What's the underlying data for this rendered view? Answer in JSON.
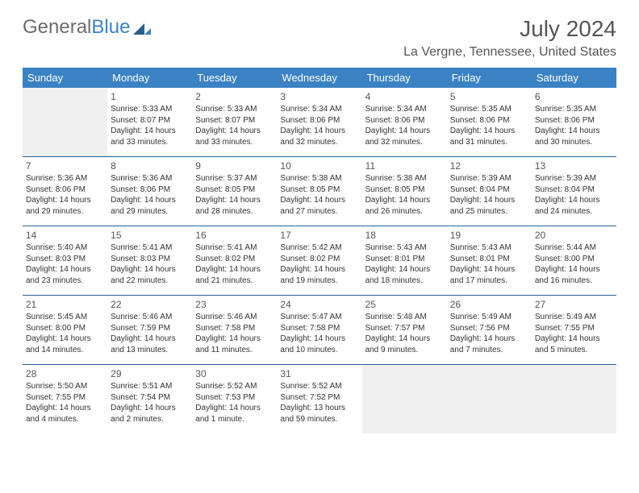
{
  "brand": {
    "word1": "General",
    "word2": "Blue"
  },
  "title": "July 2024",
  "location": "La Vergne, Tennessee, United States",
  "colors": {
    "header_bg": "#3b82c4",
    "header_text": "#ffffff",
    "cell_border": "#2c5f8d",
    "body_text": "#333333",
    "muted_text": "#555555",
    "empty_bg": "#f0f0f0",
    "page_bg": "#ffffff"
  },
  "typography": {
    "title_fontsize": 28,
    "location_fontsize": 16,
    "dayheader_fontsize": 13,
    "daynum_fontsize": 12,
    "cell_fontsize": 10
  },
  "dayHeaders": [
    "Sunday",
    "Monday",
    "Tuesday",
    "Wednesday",
    "Thursday",
    "Friday",
    "Saturday"
  ],
  "weeks": [
    [
      {
        "n": "",
        "sr": "",
        "ss": "",
        "dl": "",
        "empty": true
      },
      {
        "n": "1",
        "sr": "Sunrise: 5:33 AM",
        "ss": "Sunset: 8:07 PM",
        "dl": "Daylight: 14 hours and 33 minutes."
      },
      {
        "n": "2",
        "sr": "Sunrise: 5:33 AM",
        "ss": "Sunset: 8:07 PM",
        "dl": "Daylight: 14 hours and 33 minutes."
      },
      {
        "n": "3",
        "sr": "Sunrise: 5:34 AM",
        "ss": "Sunset: 8:06 PM",
        "dl": "Daylight: 14 hours and 32 minutes."
      },
      {
        "n": "4",
        "sr": "Sunrise: 5:34 AM",
        "ss": "Sunset: 8:06 PM",
        "dl": "Daylight: 14 hours and 32 minutes."
      },
      {
        "n": "5",
        "sr": "Sunrise: 5:35 AM",
        "ss": "Sunset: 8:06 PM",
        "dl": "Daylight: 14 hours and 31 minutes."
      },
      {
        "n": "6",
        "sr": "Sunrise: 5:35 AM",
        "ss": "Sunset: 8:06 PM",
        "dl": "Daylight: 14 hours and 30 minutes."
      }
    ],
    [
      {
        "n": "7",
        "sr": "Sunrise: 5:36 AM",
        "ss": "Sunset: 8:06 PM",
        "dl": "Daylight: 14 hours and 29 minutes."
      },
      {
        "n": "8",
        "sr": "Sunrise: 5:36 AM",
        "ss": "Sunset: 8:06 PM",
        "dl": "Daylight: 14 hours and 29 minutes."
      },
      {
        "n": "9",
        "sr": "Sunrise: 5:37 AM",
        "ss": "Sunset: 8:05 PM",
        "dl": "Daylight: 14 hours and 28 minutes."
      },
      {
        "n": "10",
        "sr": "Sunrise: 5:38 AM",
        "ss": "Sunset: 8:05 PM",
        "dl": "Daylight: 14 hours and 27 minutes."
      },
      {
        "n": "11",
        "sr": "Sunrise: 5:38 AM",
        "ss": "Sunset: 8:05 PM",
        "dl": "Daylight: 14 hours and 26 minutes."
      },
      {
        "n": "12",
        "sr": "Sunrise: 5:39 AM",
        "ss": "Sunset: 8:04 PM",
        "dl": "Daylight: 14 hours and 25 minutes."
      },
      {
        "n": "13",
        "sr": "Sunrise: 5:39 AM",
        "ss": "Sunset: 8:04 PM",
        "dl": "Daylight: 14 hours and 24 minutes."
      }
    ],
    [
      {
        "n": "14",
        "sr": "Sunrise: 5:40 AM",
        "ss": "Sunset: 8:03 PM",
        "dl": "Daylight: 14 hours and 23 minutes."
      },
      {
        "n": "15",
        "sr": "Sunrise: 5:41 AM",
        "ss": "Sunset: 8:03 PM",
        "dl": "Daylight: 14 hours and 22 minutes."
      },
      {
        "n": "16",
        "sr": "Sunrise: 5:41 AM",
        "ss": "Sunset: 8:02 PM",
        "dl": "Daylight: 14 hours and 21 minutes."
      },
      {
        "n": "17",
        "sr": "Sunrise: 5:42 AM",
        "ss": "Sunset: 8:02 PM",
        "dl": "Daylight: 14 hours and 19 minutes."
      },
      {
        "n": "18",
        "sr": "Sunrise: 5:43 AM",
        "ss": "Sunset: 8:01 PM",
        "dl": "Daylight: 14 hours and 18 minutes."
      },
      {
        "n": "19",
        "sr": "Sunrise: 5:43 AM",
        "ss": "Sunset: 8:01 PM",
        "dl": "Daylight: 14 hours and 17 minutes."
      },
      {
        "n": "20",
        "sr": "Sunrise: 5:44 AM",
        "ss": "Sunset: 8:00 PM",
        "dl": "Daylight: 14 hours and 16 minutes."
      }
    ],
    [
      {
        "n": "21",
        "sr": "Sunrise: 5:45 AM",
        "ss": "Sunset: 8:00 PM",
        "dl": "Daylight: 14 hours and 14 minutes."
      },
      {
        "n": "22",
        "sr": "Sunrise: 5:46 AM",
        "ss": "Sunset: 7:59 PM",
        "dl": "Daylight: 14 hours and 13 minutes."
      },
      {
        "n": "23",
        "sr": "Sunrise: 5:46 AM",
        "ss": "Sunset: 7:58 PM",
        "dl": "Daylight: 14 hours and 11 minutes."
      },
      {
        "n": "24",
        "sr": "Sunrise: 5:47 AM",
        "ss": "Sunset: 7:58 PM",
        "dl": "Daylight: 14 hours and 10 minutes."
      },
      {
        "n": "25",
        "sr": "Sunrise: 5:48 AM",
        "ss": "Sunset: 7:57 PM",
        "dl": "Daylight: 14 hours and 9 minutes."
      },
      {
        "n": "26",
        "sr": "Sunrise: 5:49 AM",
        "ss": "Sunset: 7:56 PM",
        "dl": "Daylight: 14 hours and 7 minutes."
      },
      {
        "n": "27",
        "sr": "Sunrise: 5:49 AM",
        "ss": "Sunset: 7:55 PM",
        "dl": "Daylight: 14 hours and 5 minutes."
      }
    ],
    [
      {
        "n": "28",
        "sr": "Sunrise: 5:50 AM",
        "ss": "Sunset: 7:55 PM",
        "dl": "Daylight: 14 hours and 4 minutes."
      },
      {
        "n": "29",
        "sr": "Sunrise: 5:51 AM",
        "ss": "Sunset: 7:54 PM",
        "dl": "Daylight: 14 hours and 2 minutes."
      },
      {
        "n": "30",
        "sr": "Sunrise: 5:52 AM",
        "ss": "Sunset: 7:53 PM",
        "dl": "Daylight: 14 hours and 1 minute."
      },
      {
        "n": "31",
        "sr": "Sunrise: 5:52 AM",
        "ss": "Sunset: 7:52 PM",
        "dl": "Daylight: 13 hours and 59 minutes."
      },
      {
        "n": "",
        "sr": "",
        "ss": "",
        "dl": "",
        "empty": true
      },
      {
        "n": "",
        "sr": "",
        "ss": "",
        "dl": "",
        "empty": true
      },
      {
        "n": "",
        "sr": "",
        "ss": "",
        "dl": "",
        "empty": true
      }
    ]
  ]
}
